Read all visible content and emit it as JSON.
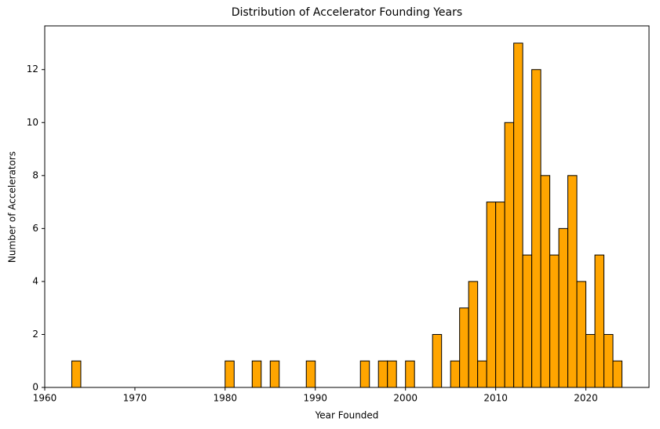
{
  "chart_data": {
    "type": "histogram",
    "title": "Distribution of Accelerator Founding Years",
    "x_label": "Year Founded",
    "y_label": "Number of Accelerators",
    "bins": [
      1963,
      1964,
      1965,
      1966,
      1967,
      1968,
      1969,
      1970,
      1971,
      1972,
      1973,
      1974,
      1975,
      1976,
      1977,
      1978,
      1979,
      1980,
      1981,
      1982,
      1983,
      1984,
      1985,
      1986,
      1987,
      1988,
      1989,
      1990,
      1991,
      1992,
      1993,
      1994,
      1995,
      1996,
      1997,
      1998,
      1999,
      2000,
      2001,
      2002,
      2003,
      2004,
      2005,
      2006,
      2007,
      2008,
      2009,
      2010,
      2011,
      2012,
      2013,
      2014,
      2015,
      2016,
      2017,
      2018,
      2019,
      2020,
      2021,
      2022,
      2023,
      2024
    ],
    "values": [
      1,
      0,
      0,
      0,
      0,
      0,
      0,
      0,
      0,
      0,
      0,
      0,
      0,
      0,
      0,
      0,
      0,
      1,
      0,
      0,
      1,
      0,
      1,
      0,
      0,
      0,
      1,
      0,
      0,
      0,
      0,
      0,
      1,
      0,
      1,
      1,
      0,
      1,
      0,
      0,
      2,
      0,
      1,
      3,
      4,
      1,
      7,
      7,
      10,
      13,
      5,
      12,
      8,
      5,
      6,
      8,
      4,
      2,
      5,
      2,
      1
    ],
    "color": "#ffa500",
    "edgecolor": "#000000",
    "xlim": [
      1960,
      2027
    ],
    "ylim": [
      0,
      13.65
    ],
    "xticks": [
      1960,
      1970,
      1980,
      1990,
      2000,
      2010,
      2020
    ],
    "yticks": [
      0,
      2,
      4,
      6,
      8,
      10,
      12
    ]
  }
}
